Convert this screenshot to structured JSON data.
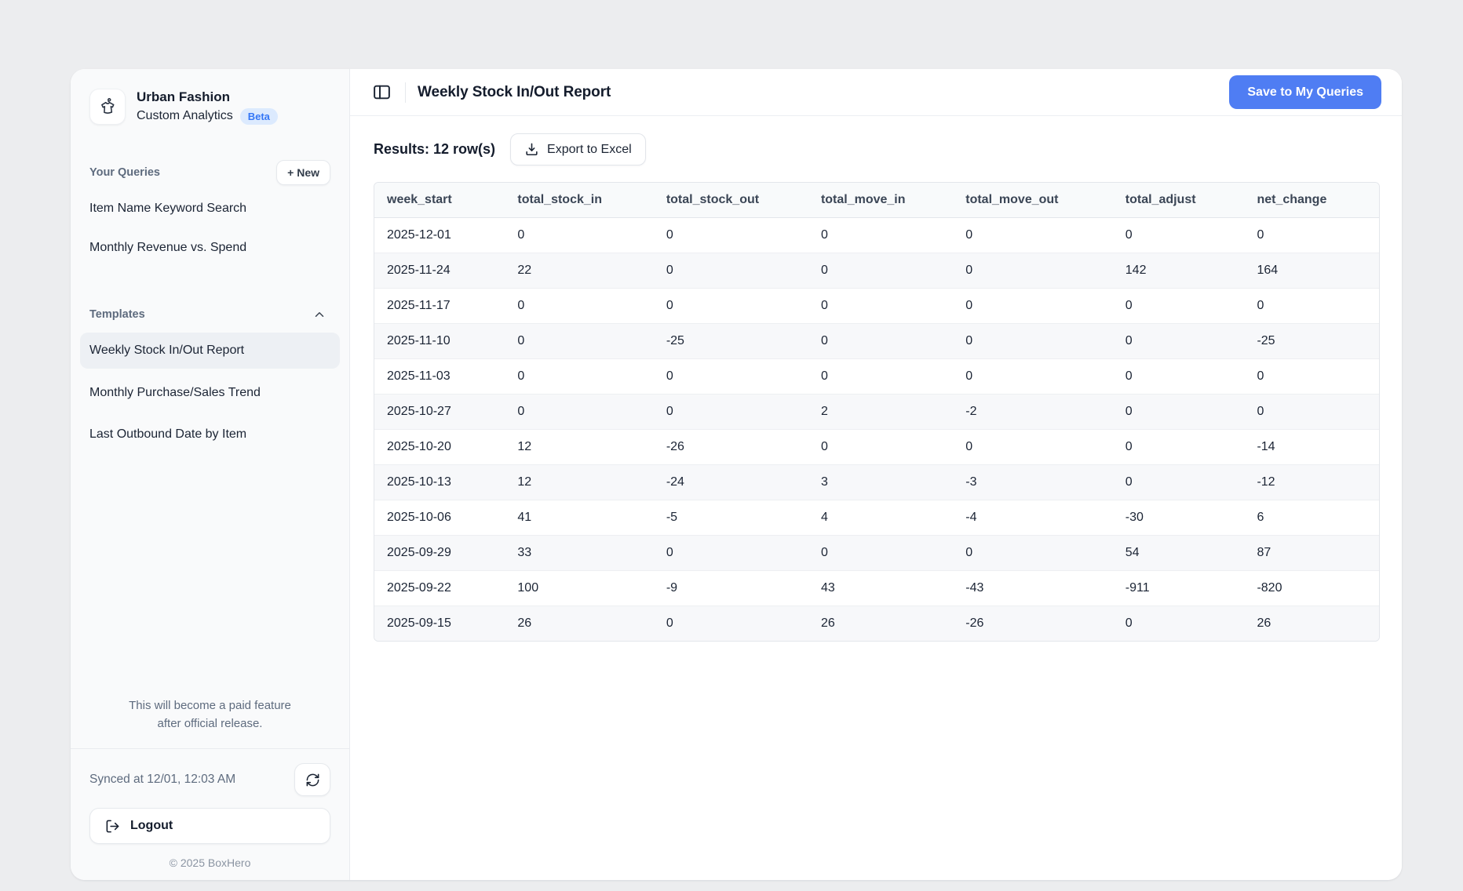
{
  "app": {
    "workspace_name": "Urban Fashion",
    "app_name": "Custom Analytics",
    "beta_badge": "Beta",
    "copyright": "© 2025 BoxHero"
  },
  "sidebar": {
    "your_queries_label": "Your Queries",
    "new_button": "+ New",
    "queries": [
      {
        "label": "Item Name Keyword Search"
      },
      {
        "label": "Monthly Revenue vs. Spend"
      }
    ],
    "templates_label": "Templates",
    "templates": [
      {
        "label": "Weekly Stock In/Out Report",
        "selected": true
      },
      {
        "label": "Monthly Purchase/Sales Trend",
        "selected": false
      },
      {
        "label": "Last Outbound Date by Item",
        "selected": false
      }
    ],
    "notice_line1": "This will become a paid feature",
    "notice_line2": "after official release.",
    "synced_text": "Synced at 12/01, 12:03 AM",
    "logout_label": "Logout"
  },
  "header": {
    "title": "Weekly Stock In/Out Report",
    "save_button": "Save to My Queries"
  },
  "results": {
    "summary": "Results: 12 row(s)",
    "export_button": "Export to Excel"
  },
  "table": {
    "columns": [
      "week_start",
      "total_stock_in",
      "total_stock_out",
      "total_move_in",
      "total_move_out",
      "total_adjust",
      "net_change"
    ],
    "rows": [
      [
        "2025-12-01",
        "0",
        "0",
        "0",
        "0",
        "0",
        "0"
      ],
      [
        "2025-11-24",
        "22",
        "0",
        "0",
        "0",
        "142",
        "164"
      ],
      [
        "2025-11-17",
        "0",
        "0",
        "0",
        "0",
        "0",
        "0"
      ],
      [
        "2025-11-10",
        "0",
        "-25",
        "0",
        "0",
        "0",
        "-25"
      ],
      [
        "2025-11-03",
        "0",
        "0",
        "0",
        "0",
        "0",
        "0"
      ],
      [
        "2025-10-27",
        "0",
        "0",
        "2",
        "-2",
        "0",
        "0"
      ],
      [
        "2025-10-20",
        "12",
        "-26",
        "0",
        "0",
        "0",
        "-14"
      ],
      [
        "2025-10-13",
        "12",
        "-24",
        "3",
        "-3",
        "0",
        "-12"
      ],
      [
        "2025-10-06",
        "41",
        "-5",
        "4",
        "-4",
        "-30",
        "6"
      ],
      [
        "2025-09-29",
        "33",
        "0",
        "0",
        "0",
        "54",
        "87"
      ],
      [
        "2025-09-22",
        "100",
        "-9",
        "43",
        "-43",
        "-911",
        "-820"
      ],
      [
        "2025-09-15",
        "26",
        "0",
        "26",
        "-26",
        "0",
        "26"
      ]
    ]
  },
  "colors": {
    "accent_blue": "#4F7DF3",
    "beta_badge_bg": "#DCEAFE",
    "beta_badge_text": "#3577F6",
    "page_background": "#ECEDEF",
    "sidebar_background": "#F9FAFB",
    "table_header_bg": "#F8FAFB",
    "zebra_row_bg": "#F7F8FA"
  }
}
